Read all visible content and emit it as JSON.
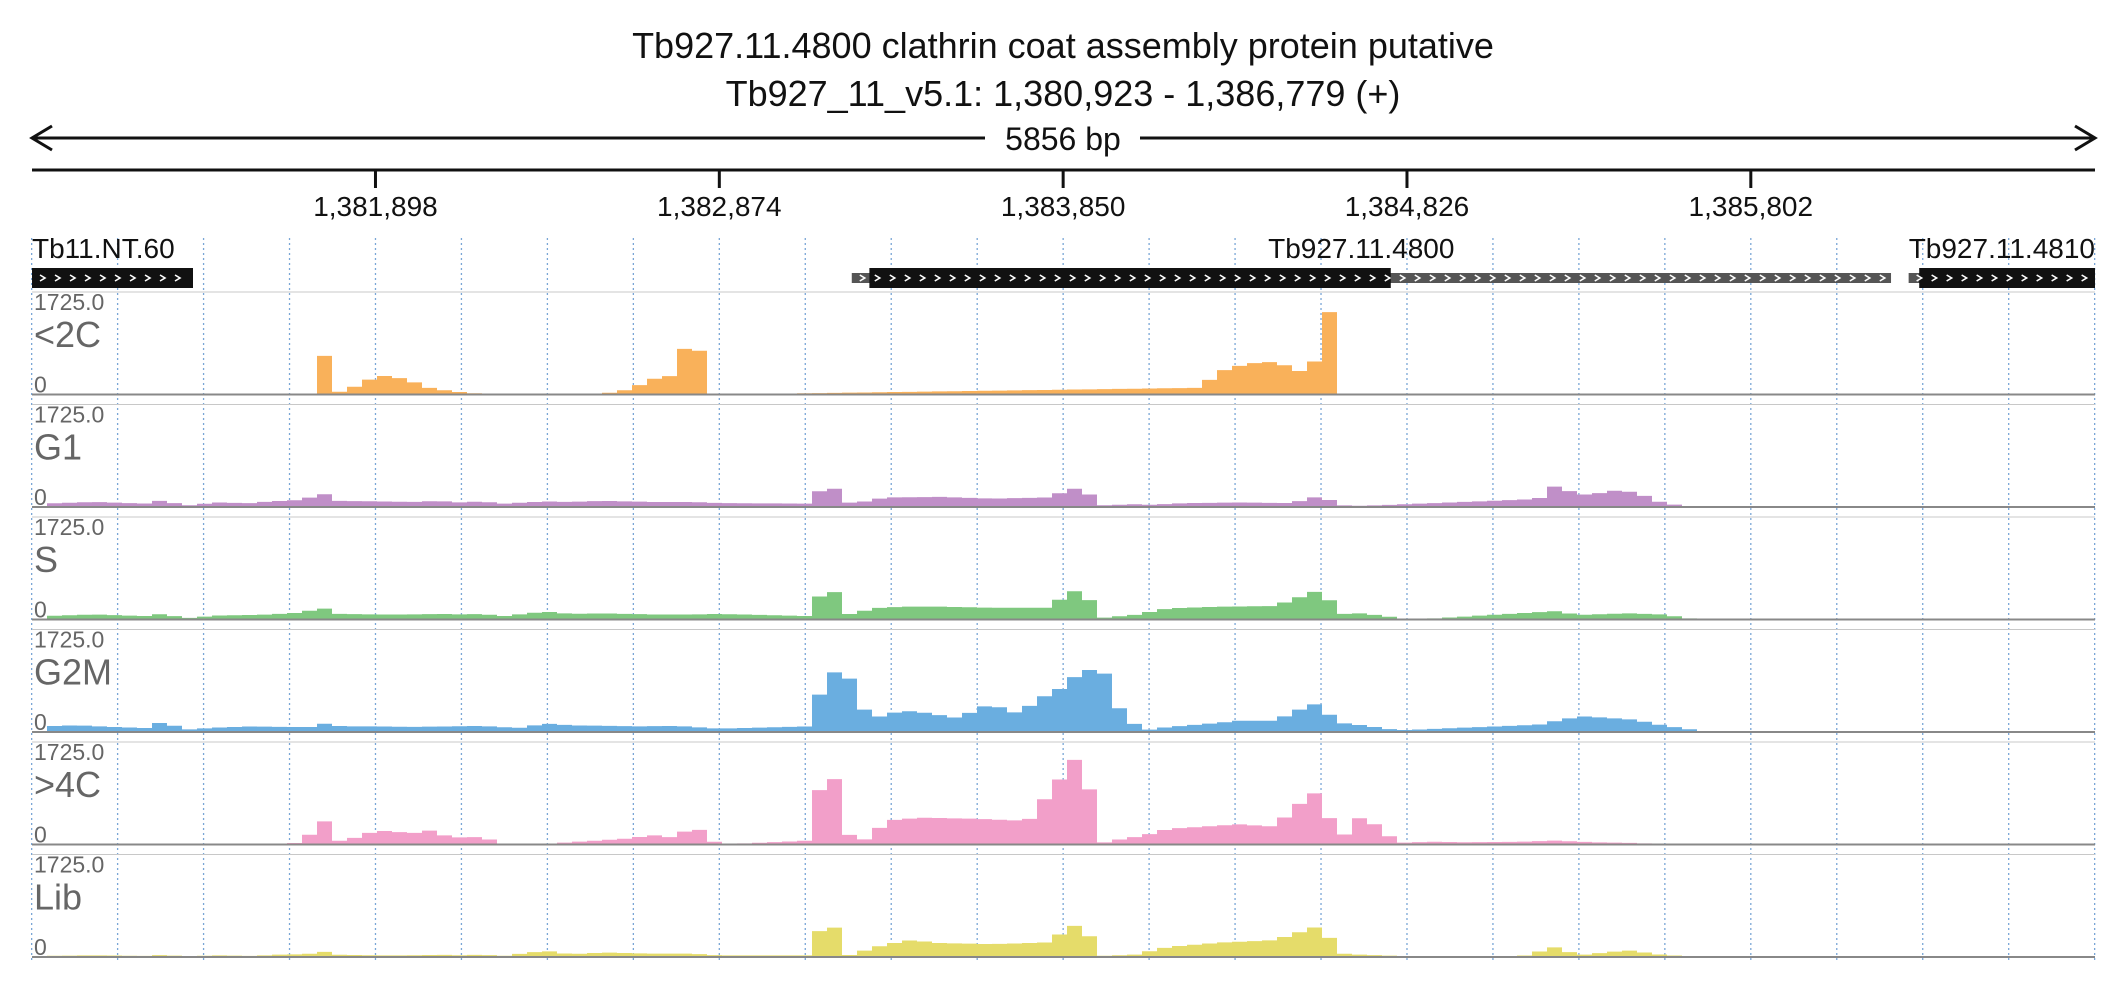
{
  "title": {
    "line1": "Tb927.11.4800  clathrin coat assembly protein  putative",
    "line2": "Tb927_11_v5.1: 1,380,923 - 1,386,779 (+)"
  },
  "span_label": "5856 bp",
  "colors": {
    "text": "#111111",
    "track_label": "#666666",
    "grid": "#7aa6d6",
    "baseline": "#888888",
    "gene_dark": "#111111",
    "gene_utr": "#555555"
  },
  "chart_data": {
    "type": "area",
    "xlim": [
      1380923,
      1386779
    ],
    "x_ticks": [
      1381898,
      1382874,
      1383850,
      1384826,
      1385802
    ],
    "x_tick_labels": [
      "1,381,898",
      "1,382,874",
      "1,383,850",
      "1,384,826",
      "1,385,802"
    ],
    "genes": [
      {
        "name": "Tb11.NT.60",
        "start": 1380923,
        "end": 1381380,
        "cds": [
          1380923,
          1381380
        ],
        "strand": "+"
      },
      {
        "name": "Tb927.11.4800",
        "start": 1383250,
        "end": 1386200,
        "cds": [
          1383300,
          1384780
        ],
        "strand": "+"
      },
      {
        "name": "Tb927.11.4810",
        "start": 1386250,
        "end": 1386779,
        "cds": [
          1386280,
          1386779
        ],
        "strand": "+"
      }
    ],
    "tracks": [
      {
        "name": "<2C",
        "color": "#f9b15a",
        "ymax": 1725.0,
        "ymin": 0,
        "x": [
          1381740,
          1381790,
          1381791,
          1381830,
          1381870,
          1381930,
          1381990,
          1382050,
          1382110,
          1382170,
          1382230,
          1382290,
          1382400,
          1382550,
          1382620,
          1382680,
          1382720,
          1382760,
          1382770,
          1382820,
          1382821,
          1382870,
          1384240,
          1384290,
          1384340,
          1384390,
          1384440,
          1384480,
          1384520,
          1384560,
          1384580,
          1384640,
          1384641,
          1384680
        ],
        "values": [
          690,
          690,
          40,
          110,
          250,
          340,
          260,
          120,
          60,
          25,
          10,
          5,
          0,
          20,
          90,
          260,
          350,
          280,
          820,
          780,
          0,
          0,
          120,
          400,
          500,
          560,
          580,
          520,
          420,
          400,
          1490,
          1450,
          0,
          0
        ]
      },
      {
        "name": "G1",
        "color": "#c08fc8",
        "ymax": 1725.0,
        "ymin": 0,
        "x": [
          1380950,
          1381100,
          1381250,
          1381300,
          1381350,
          1381450,
          1381540,
          1381600,
          1381700,
          1381740,
          1381790,
          1381900,
          1382000,
          1382080,
          1382130,
          1382200,
          1382260,
          1382380,
          1382450,
          1382550,
          1382680,
          1382800,
          1382870,
          1383130,
          1383180,
          1383250,
          1383300,
          1383350,
          1383500,
          1383650,
          1383800,
          1383900,
          1383960,
          1384050,
          1384100,
          1384200,
          1384350,
          1384500,
          1384580,
          1384640,
          1384700,
          1385150,
          1385200,
          1385250,
          1385310,
          1385360,
          1385410,
          1385440,
          1385470,
          1385520,
          1385560,
          1385620,
          1385700
        ],
        "values": [
          60,
          90,
          60,
          130,
          20,
          80,
          70,
          100,
          130,
          270,
          110,
          100,
          90,
          110,
          80,
          100,
          60,
          100,
          90,
          110,
          90,
          90,
          70,
          60,
          450,
          40,
          120,
          170,
          180,
          150,
          170,
          360,
          30,
          50,
          40,
          70,
          80,
          70,
          200,
          30,
          20,
          130,
          150,
          390,
          220,
          230,
          300,
          250,
          290,
          140,
          60,
          20,
          0
        ]
      },
      {
        "name": "S",
        "color": "#7fc87f",
        "ymax": 1725.0,
        "ymin": 0,
        "x": [
          1380950,
          1381100,
          1381250,
          1381300,
          1381350,
          1381450,
          1381540,
          1381600,
          1381700,
          1381740,
          1381790,
          1381900,
          1382000,
          1382080,
          1382130,
          1382200,
          1382260,
          1382380,
          1382450,
          1382550,
          1382680,
          1382800,
          1382870,
          1383130,
          1383180,
          1383250,
          1383300,
          1383400,
          1383500,
          1383650,
          1383800,
          1383900,
          1383960,
          1384050,
          1384150,
          1384300,
          1384450,
          1384580,
          1384640,
          1384700,
          1384800,
          1384850,
          1385250,
          1385310,
          1385360,
          1385450,
          1385550,
          1385650
        ],
        "values": [
          60,
          90,
          60,
          110,
          20,
          70,
          80,
          90,
          130,
          230,
          100,
          90,
          90,
          100,
          90,
          100,
          60,
          140,
          100,
          110,
          90,
          90,
          100,
          60,
          680,
          40,
          200,
          230,
          230,
          210,
          210,
          570,
          30,
          80,
          200,
          230,
          240,
          530,
          100,
          110,
          30,
          0,
          150,
          80,
          90,
          110,
          90,
          0
        ]
      },
      {
        "name": "G2M",
        "color": "#6aaee0",
        "ymax": 1725.0,
        "ymin": 0,
        "x": [
          1380950,
          1381050,
          1381150,
          1381250,
          1381300,
          1381350,
          1381450,
          1381550,
          1381650,
          1381720,
          1381760,
          1381800,
          1381900,
          1382000,
          1382100,
          1382200,
          1382300,
          1382380,
          1382450,
          1382550,
          1382650,
          1382750,
          1382870,
          1383130,
          1383180,
          1383240,
          1383300,
          1383350,
          1383400,
          1383450,
          1383500,
          1383550,
          1383650,
          1383700,
          1383750,
          1383800,
          1383850,
          1383900,
          1383960,
          1384020,
          1384080,
          1384150,
          1384250,
          1384350,
          1384450,
          1384560,
          1384640,
          1384700,
          1384800,
          1385200,
          1385250,
          1385320,
          1385400,
          1385470,
          1385550,
          1385650
        ],
        "values": [
          100,
          120,
          90,
          70,
          200,
          40,
          80,
          100,
          90,
          90,
          160,
          100,
          100,
          90,
          100,
          110,
          70,
          150,
          120,
          110,
          100,
          110,
          60,
          100,
          1100,
          1000,
          220,
          320,
          380,
          350,
          300,
          250,
          520,
          320,
          450,
          650,
          800,
          1080,
          1150,
          280,
          30,
          90,
          140,
          200,
          200,
          510,
          160,
          120,
          30,
          130,
          200,
          280,
          250,
          220,
          120,
          30
        ]
      },
      {
        "name": ">4C",
        "color": "#f29fc9",
        "ymax": 1725.0,
        "ymin": 0,
        "x": [
          1381600,
          1381700,
          1381740,
          1381790,
          1381840,
          1381900,
          1381950,
          1382000,
          1382050,
          1382100,
          1382150,
          1382200,
          1382260,
          1382400,
          1382600,
          1382700,
          1382750,
          1382800,
          1382870,
          1383130,
          1383180,
          1383250,
          1383300,
          1383350,
          1383450,
          1383600,
          1383750,
          1383900,
          1383960,
          1384020,
          1384080,
          1384150,
          1384250,
          1384350,
          1384450,
          1384560,
          1384640,
          1384700,
          1384800,
          1384900,
          1385000,
          1385150,
          1385250,
          1385350,
          1385450,
          1385600
        ],
        "values": [
          0,
          40,
          540,
          60,
          120,
          250,
          230,
          200,
          250,
          150,
          120,
          140,
          0,
          20,
          100,
          170,
          110,
          350,
          0,
          70,
          1660,
          20,
          120,
          430,
          480,
          460,
          420,
          1660,
          30,
          100,
          160,
          280,
          320,
          360,
          320,
          950,
          120,
          530,
          30,
          50,
          40,
          50,
          70,
          40,
          30,
          0
        ]
      },
      {
        "name": "Lib",
        "color": "#e5dc6a",
        "ymax": 1725.0,
        "ymin": 0,
        "x": [
          1380950,
          1381100,
          1381250,
          1381300,
          1381350,
          1381450,
          1381550,
          1381650,
          1381700,
          1381740,
          1381790,
          1381900,
          1382000,
          1382080,
          1382130,
          1382200,
          1382260,
          1382380,
          1382450,
          1382550,
          1382680,
          1382800,
          1382870,
          1383130,
          1383180,
          1383240,
          1383300,
          1383350,
          1383420,
          1383500,
          1383650,
          1383800,
          1383900,
          1383960,
          1384050,
          1384150,
          1384300,
          1384450,
          1384580,
          1384640,
          1384700,
          1384850,
          1385000,
          1385150,
          1385250,
          1385310,
          1385360,
          1385450,
          1385550,
          1385650
        ],
        "values": [
          20,
          30,
          20,
          40,
          10,
          30,
          20,
          50,
          40,
          110,
          40,
          30,
          30,
          40,
          30,
          40,
          20,
          110,
          50,
          80,
          60,
          60,
          30,
          30,
          790,
          30,
          140,
          230,
          300,
          250,
          230,
          260,
          620,
          20,
          40,
          180,
          260,
          300,
          560,
          60,
          40,
          10,
          0,
          10,
          180,
          30,
          60,
          120,
          40,
          0
        ]
      }
    ]
  }
}
